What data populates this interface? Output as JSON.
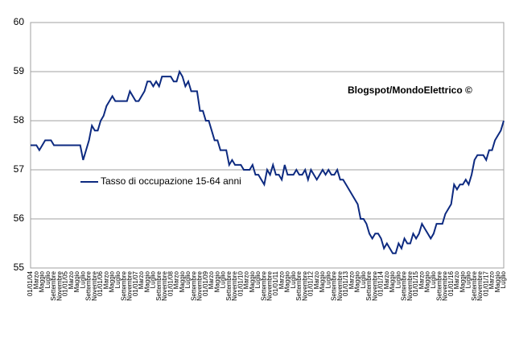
{
  "chart_data": {
    "type": "line",
    "annotation": "Blogspot/MondoElettrico ©",
    "categories": [
      "01/01/04",
      null,
      "Marzo",
      null,
      "Maggio",
      null,
      "Luglio",
      null,
      "Settembre",
      null,
      "Novembre",
      null,
      "01/01/05",
      null,
      "Marzo",
      null,
      "Maggio",
      null,
      "Luglio",
      null,
      "Settembre",
      null,
      "Novembre",
      null,
      "01/01/06",
      null,
      "Marzo",
      null,
      "Maggio",
      null,
      "Luglio",
      null,
      "Settembre",
      null,
      "Novembre",
      null,
      "01/01/07",
      null,
      "Marzo",
      null,
      "Maggio",
      null,
      "Luglio",
      null,
      "Settembre",
      null,
      "Novembre",
      null,
      "01/01/08",
      null,
      "Marzo",
      null,
      "Maggio",
      null,
      "Luglio",
      null,
      "Settembre",
      null,
      "Novembre",
      null,
      "01/01/09",
      null,
      "Marzo",
      null,
      "Maggio",
      null,
      "Luglio",
      null,
      "Settembre",
      null,
      "Novembre",
      null,
      "01/01/10",
      null,
      "Marzo",
      null,
      "Maggio",
      null,
      "Luglio",
      null,
      "Settembre",
      null,
      "Novembre",
      null,
      "01/01/11",
      null,
      "Marzo",
      null,
      "Maggio",
      null,
      "Luglio",
      null,
      "Settembre",
      null,
      "Novembre",
      null,
      "01/01/12",
      null,
      "Marzo",
      null,
      "Maggio",
      null,
      "Luglio",
      null,
      "Settembre",
      null,
      "Novembre",
      null,
      "01/01/13",
      null,
      "Marzo",
      null,
      "Maggio",
      null,
      "Luglio",
      null,
      "Settembre",
      null,
      "Novembre",
      null,
      "01/01/14",
      null,
      "Marzo",
      null,
      "Maggio",
      null,
      "Luglio",
      null,
      "Settembre",
      null,
      "Novembre",
      null,
      "01/01/15",
      null,
      "Marzo",
      null,
      "Maggio",
      null,
      "Luglio",
      null,
      "Settembre",
      null,
      "Novembre",
      null,
      "01/01/16",
      null,
      "Marzo",
      null,
      "Maggio",
      null,
      "Luglio",
      null,
      "Settembre",
      null,
      "Novembre",
      null,
      "01/01/17",
      null,
      "Marzo",
      null,
      "Maggio",
      null,
      "Luglio"
    ],
    "series": [
      {
        "name": "Tasso di occupazione 15-64 anni",
        "color": "#0d2a80",
        "values": [
          57.5,
          57.5,
          57.5,
          57.4,
          57.5,
          57.6,
          57.6,
          57.6,
          57.5,
          57.5,
          57.5,
          57.5,
          57.5,
          57.5,
          57.5,
          57.5,
          57.5,
          57.5,
          57.2,
          57.4,
          57.6,
          57.9,
          57.8,
          57.8,
          58.0,
          58.1,
          58.3,
          58.4,
          58.5,
          58.4,
          58.4,
          58.4,
          58.4,
          58.4,
          58.6,
          58.5,
          58.4,
          58.4,
          58.5,
          58.6,
          58.8,
          58.8,
          58.7,
          58.8,
          58.7,
          58.9,
          58.9,
          58.9,
          58.9,
          58.8,
          58.8,
          59.0,
          58.9,
          58.7,
          58.8,
          58.6,
          58.6,
          58.6,
          58.2,
          58.2,
          58.0,
          58.0,
          57.8,
          57.6,
          57.6,
          57.4,
          57.4,
          57.4,
          57.1,
          57.2,
          57.1,
          57.1,
          57.1,
          57.0,
          57.0,
          57.0,
          57.1,
          56.9,
          56.9,
          56.8,
          56.7,
          57.0,
          56.9,
          57.1,
          56.9,
          56.9,
          56.8,
          57.1,
          56.9,
          56.9,
          56.9,
          57.0,
          56.9,
          56.9,
          57.0,
          56.8,
          57.0,
          56.9,
          56.8,
          56.9,
          57.0,
          56.9,
          57.0,
          56.9,
          56.9,
          57.0,
          56.8,
          56.8,
          56.7,
          56.6,
          56.5,
          56.4,
          56.3,
          56.0,
          56.0,
          55.9,
          55.7,
          55.6,
          55.7,
          55.7,
          55.6,
          55.4,
          55.5,
          55.4,
          55.3,
          55.3,
          55.5,
          55.4,
          55.6,
          55.5,
          55.5,
          55.7,
          55.6,
          55.7,
          55.9,
          55.8,
          55.7,
          55.6,
          55.7,
          55.9,
          55.9,
          55.9,
          56.1,
          56.2,
          56.3,
          56.7,
          56.6,
          56.7,
          56.7,
          56.8,
          56.7,
          56.9,
          57.2,
          57.3,
          57.3,
          57.3,
          57.2,
          57.4,
          57.4,
          57.6,
          57.7,
          57.8,
          58.0
        ]
      }
    ],
    "ylim": [
      55,
      60
    ],
    "yticks": [
      55,
      56,
      57,
      58,
      59,
      60
    ],
    "grid": true
  }
}
